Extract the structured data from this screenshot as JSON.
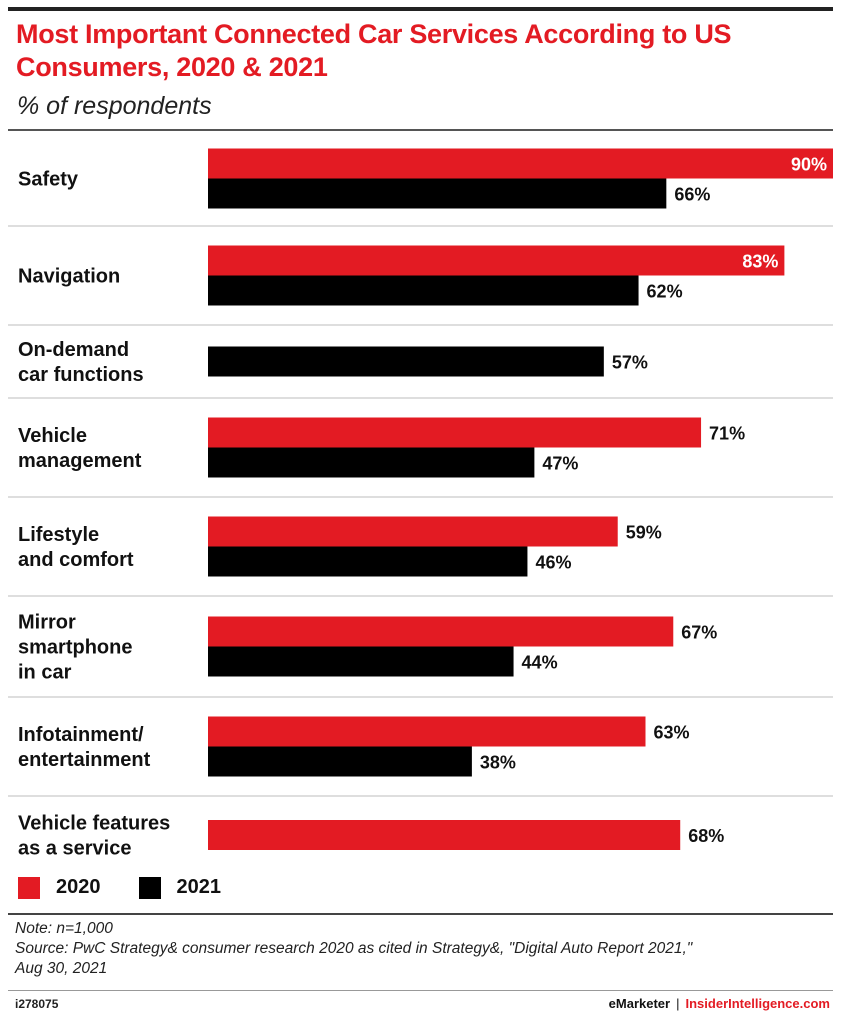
{
  "header": {
    "title": "Most Important Connected Car Services According to US Consumers, 2020 & 2021",
    "subtitle": "% of respondents"
  },
  "colors": {
    "series_2020": "#e31b23",
    "series_2021": "#000000",
    "title": "#e31b23"
  },
  "chart_data": {
    "type": "bar",
    "orientation": "horizontal",
    "title": "Most Important Connected Car Services According to US Consumers, 2020 & 2021",
    "subtitle": "% of respondents",
    "categories": [
      [
        "Safety"
      ],
      [
        "Navigation"
      ],
      [
        "On-demand",
        "car functions"
      ],
      [
        "Vehicle",
        "management"
      ],
      [
        "Lifestyle",
        "and comfort"
      ],
      [
        "Mirror",
        "smartphone",
        "in car"
      ],
      [
        "Infotainment/",
        "entertainment"
      ],
      [
        "Vehicle features",
        "as a service"
      ]
    ],
    "series": [
      {
        "name": "2020",
        "values": [
          90,
          83,
          null,
          71,
          59,
          67,
          63,
          68
        ]
      },
      {
        "name": "2021",
        "values": [
          66,
          62,
          57,
          47,
          46,
          44,
          38,
          null
        ]
      }
    ],
    "value_suffix": "%",
    "xlim": [
      0,
      90
    ],
    "grid": false,
    "legend": "bottom-left"
  },
  "legend": {
    "items": [
      {
        "label": "2020",
        "color": "#e31b23"
      },
      {
        "label": "2021",
        "color": "#000000"
      }
    ]
  },
  "notes": {
    "note": "Note: n=1,000",
    "source_line1": "Source: PwC Strategy& consumer research 2020 as cited in Strategy&, \"Digital Auto Report 2021,\"",
    "source_line2": "Aug 30, 2021"
  },
  "footer": {
    "chart_id": "i278075",
    "brand1": "eMarketer",
    "separator": "|",
    "brand2": "InsiderIntelligence.com"
  }
}
